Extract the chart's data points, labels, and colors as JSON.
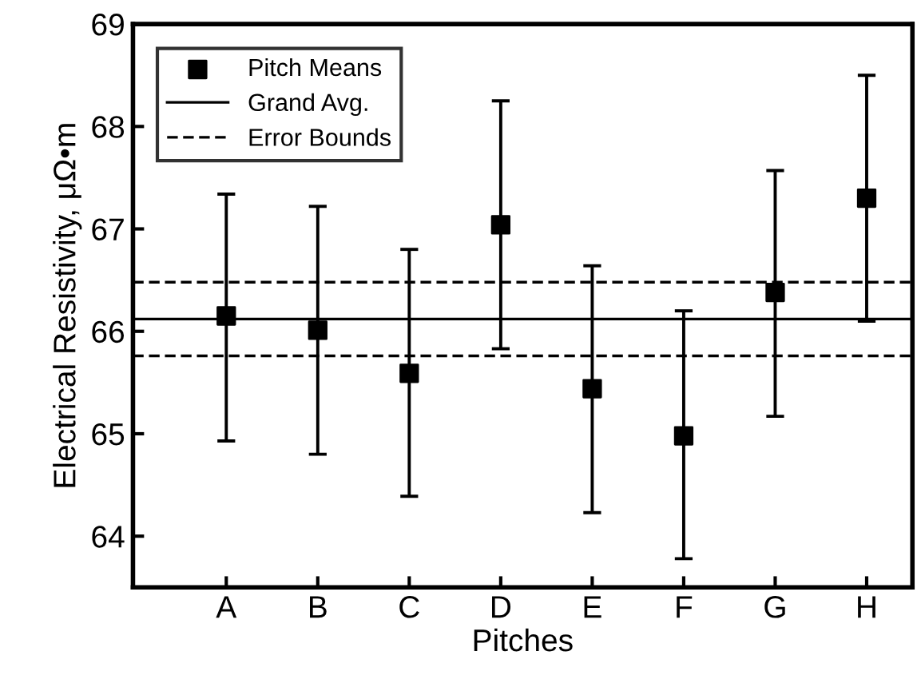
{
  "chart_data": {
    "type": "scatter",
    "xlabel": "Pitches",
    "ylabel": "Electrical Resistivity, μΩ•m",
    "categories": [
      "A",
      "B",
      "C",
      "D",
      "E",
      "F",
      "G",
      "H"
    ],
    "series": [
      {
        "name": "Pitch Means",
        "color": "#000000",
        "marker": "square",
        "values": [
          66.15,
          66.01,
          65.59,
          67.04,
          65.44,
          64.98,
          66.38,
          67.3
        ],
        "errors": [
          [
            64.93,
            67.34
          ],
          [
            64.8,
            67.22
          ],
          [
            64.39,
            66.8
          ],
          [
            65.83,
            68.25
          ],
          [
            64.23,
            66.64
          ],
          [
            63.78,
            66.2
          ],
          [
            65.17,
            67.57
          ],
          [
            66.1,
            68.5
          ]
        ]
      }
    ],
    "ref_lines": [
      {
        "axis": "y",
        "value": 66.12,
        "label": "Grand Avg.",
        "line_style": "solid",
        "color": "#000000"
      },
      {
        "axis": "y",
        "value": 66.48,
        "label": "Error Bounds",
        "line_style": "dashed",
        "color": "#000000"
      },
      {
        "axis": "y",
        "value": 65.76,
        "label": null,
        "line_style": "dashed",
        "color": "#000000"
      }
    ],
    "ylim": [
      63.5,
      69
    ],
    "yticks": [
      64,
      65,
      66,
      67,
      68,
      69
    ],
    "grid": false,
    "legend": "top left"
  }
}
